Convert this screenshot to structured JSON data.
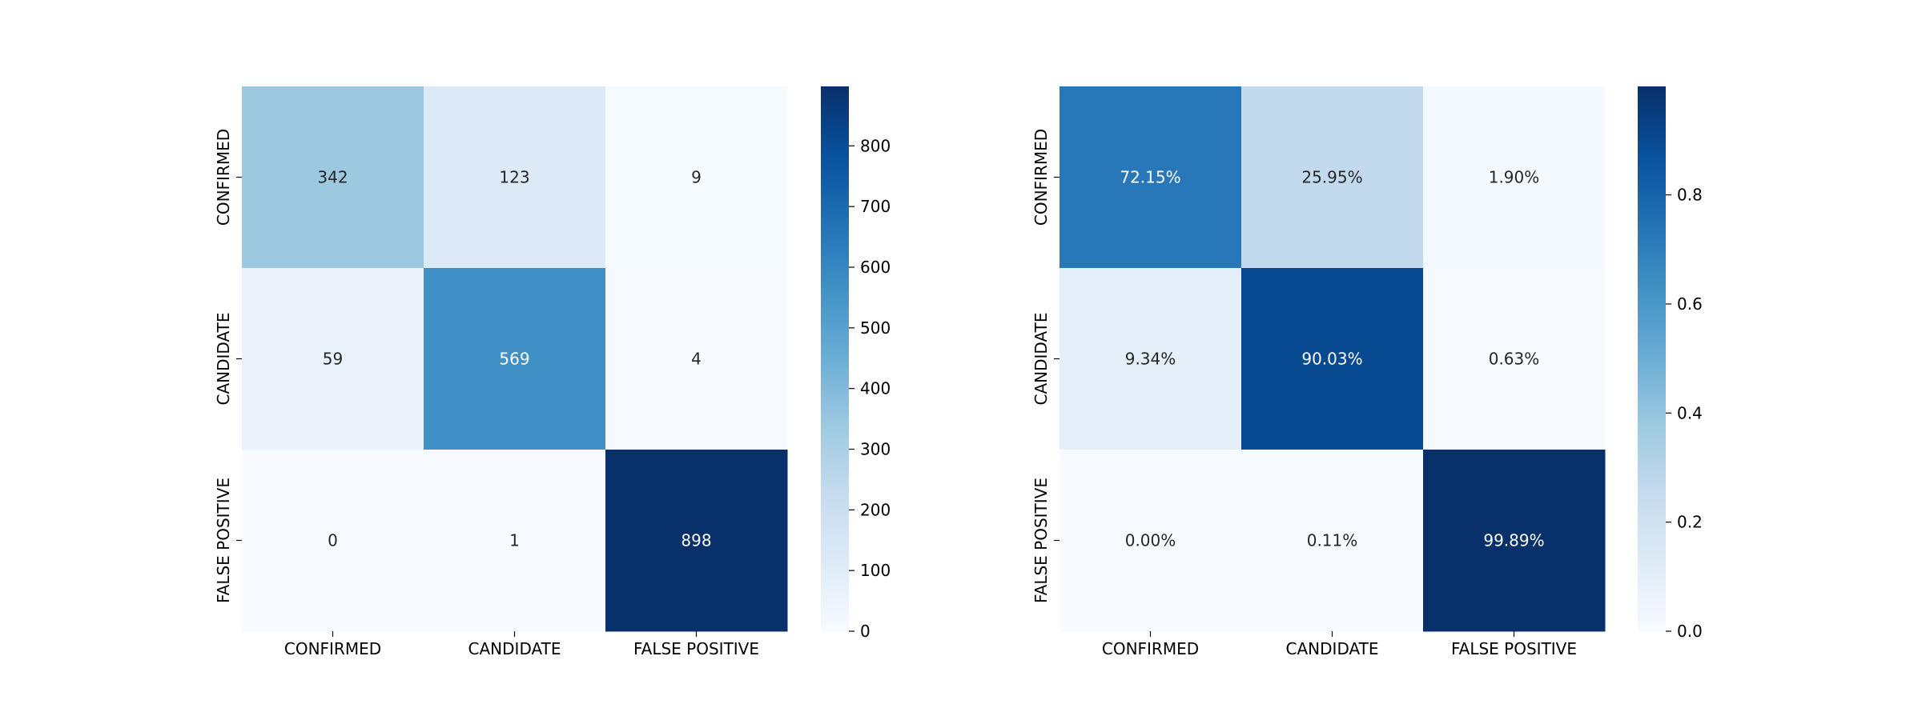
{
  "chart_data": [
    {
      "type": "heatmap",
      "title": "",
      "xlabel": "",
      "ylabel": "",
      "x_categories": [
        "CONFIRMED",
        "CANDIDATE",
        "FALSE POSITIVE"
      ],
      "y_categories": [
        "CONFIRMED",
        "CANDIDATE",
        "FALSE POSITIVE"
      ],
      "values": [
        [
          342,
          123,
          9
        ],
        [
          59,
          569,
          4
        ],
        [
          0,
          1,
          898
        ]
      ],
      "cell_labels": [
        [
          "342",
          "123",
          "9"
        ],
        [
          "59",
          "569",
          "4"
        ],
        [
          "0",
          "1",
          "898"
        ]
      ],
      "colormap": "Blues",
      "vmin": 0,
      "vmax": 898,
      "colorbar_ticks": [
        0,
        100,
        200,
        300,
        400,
        500,
        600,
        700,
        800
      ],
      "colorbar_tick_labels": [
        "0",
        "100",
        "200",
        "300",
        "400",
        "500",
        "600",
        "700",
        "800"
      ]
    },
    {
      "type": "heatmap",
      "title": "",
      "xlabel": "",
      "ylabel": "",
      "x_categories": [
        "CONFIRMED",
        "CANDIDATE",
        "FALSE POSITIVE"
      ],
      "y_categories": [
        "CONFIRMED",
        "CANDIDATE",
        "FALSE POSITIVE"
      ],
      "values": [
        [
          0.7215,
          0.2595,
          0.019
        ],
        [
          0.0934,
          0.9003,
          0.0063
        ],
        [
          0.0,
          0.0011,
          0.9989
        ]
      ],
      "cell_labels": [
        [
          "72.15%",
          "25.95%",
          "1.90%"
        ],
        [
          "9.34%",
          "90.03%",
          "0.63%"
        ],
        [
          "0.00%",
          "0.11%",
          "99.89%"
        ]
      ],
      "colormap": "Blues",
      "vmin": 0,
      "vmax": 0.9989,
      "colorbar_ticks": [
        0.0,
        0.2,
        0.4,
        0.6,
        0.8
      ],
      "colorbar_tick_labels": [
        "0.0",
        "0.2",
        "0.4",
        "0.6",
        "0.8"
      ]
    }
  ]
}
